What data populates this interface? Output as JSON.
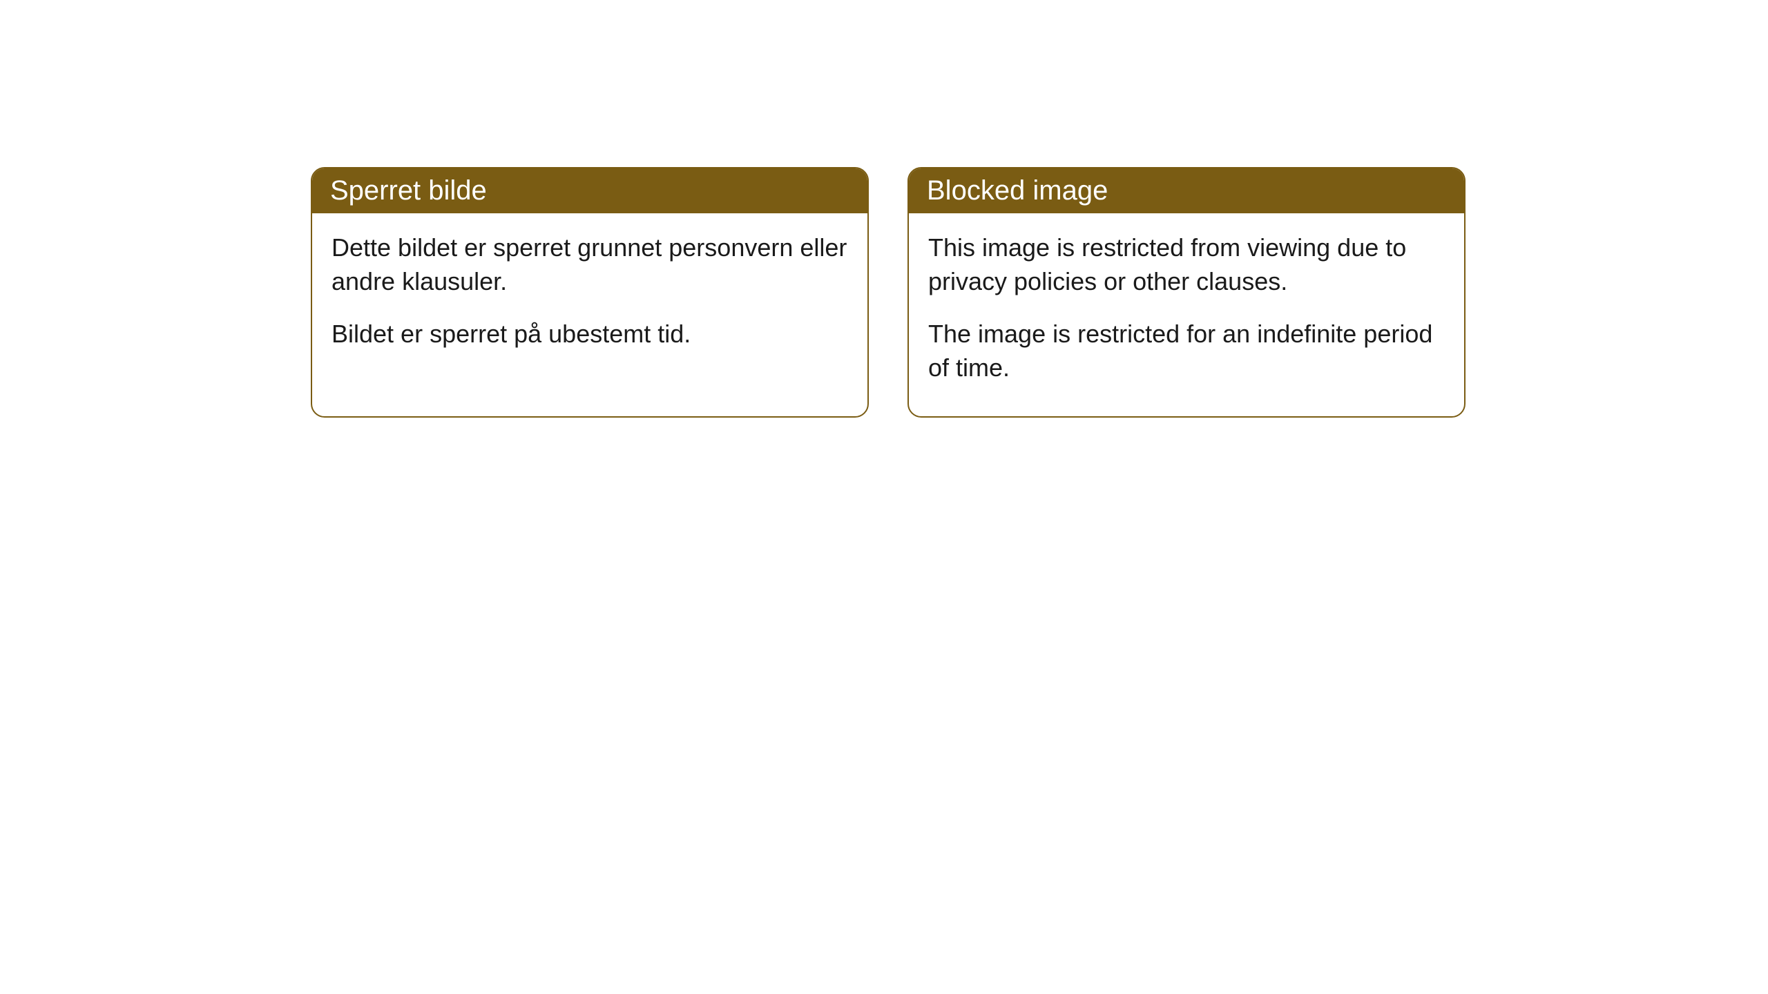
{
  "notices": [
    {
      "title": "Sperret bilde",
      "para1": "Dette bildet er sperret grunnet personvern eller andre klausuler.",
      "para2": "Bildet er sperret på ubestemt tid."
    },
    {
      "title": "Blocked image",
      "para1": "This image is restricted from viewing due to privacy policies or other clauses.",
      "para2": "The image is restricted for an indefinite period of time."
    }
  ],
  "colors": {
    "header_bg": "#7a5c13",
    "header_text": "#ffffff",
    "border": "#7a5c13",
    "body_bg": "#ffffff",
    "body_text": "#1a1a1a"
  }
}
